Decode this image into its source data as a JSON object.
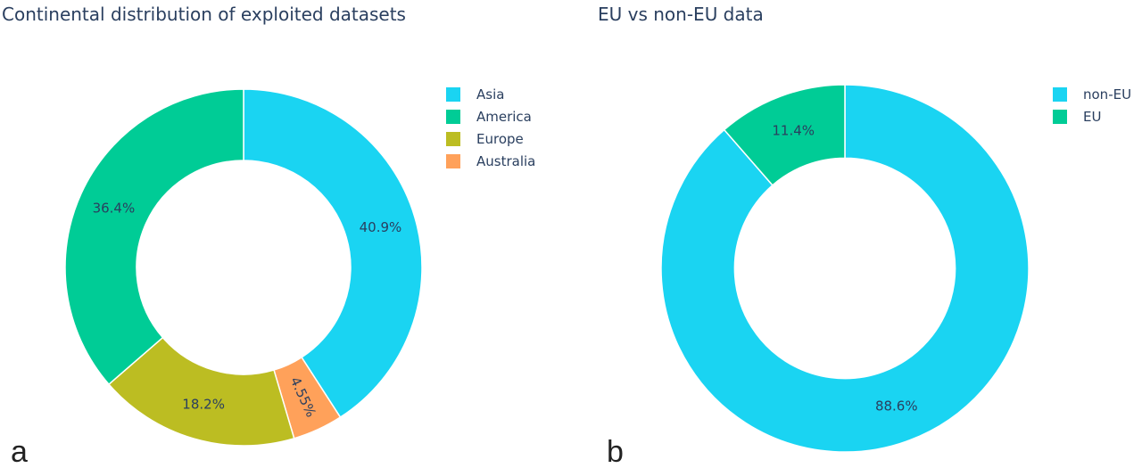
{
  "chart_data": [
    {
      "type": "pie",
      "title": "Continental distribution of exploited datasets",
      "panel_label": "a",
      "hole": 0.6,
      "direction": "clockwise",
      "start_angle_deg": 0,
      "legend_position": "top-right",
      "slices": [
        {
          "label": "Asia",
          "value": 40.9,
          "text": "40.9%",
          "color": "#1ad4f2"
        },
        {
          "label": "Australia",
          "value": 4.55,
          "text": "4.55%",
          "color": "#ffa15a"
        },
        {
          "label": "Europe",
          "value": 18.2,
          "text": "18.2%",
          "color": "#bcbd22"
        },
        {
          "label": "America",
          "value": 36.4,
          "text": "36.4%",
          "color": "#00cc96"
        }
      ],
      "legend": [
        "Asia",
        "America",
        "Europe",
        "Australia"
      ]
    },
    {
      "type": "pie",
      "title": "EU vs non-EU data",
      "panel_label": "b",
      "hole": 0.6,
      "direction": "clockwise",
      "start_angle_deg": 0,
      "legend_position": "top-right",
      "slices": [
        {
          "label": "non-EU",
          "value": 88.6,
          "text": "88.6%",
          "color": "#1ad4f2"
        },
        {
          "label": "EU",
          "value": 11.4,
          "text": "11.4%",
          "color": "#00cc96"
        }
      ],
      "legend": [
        "non-EU",
        "EU"
      ]
    }
  ]
}
